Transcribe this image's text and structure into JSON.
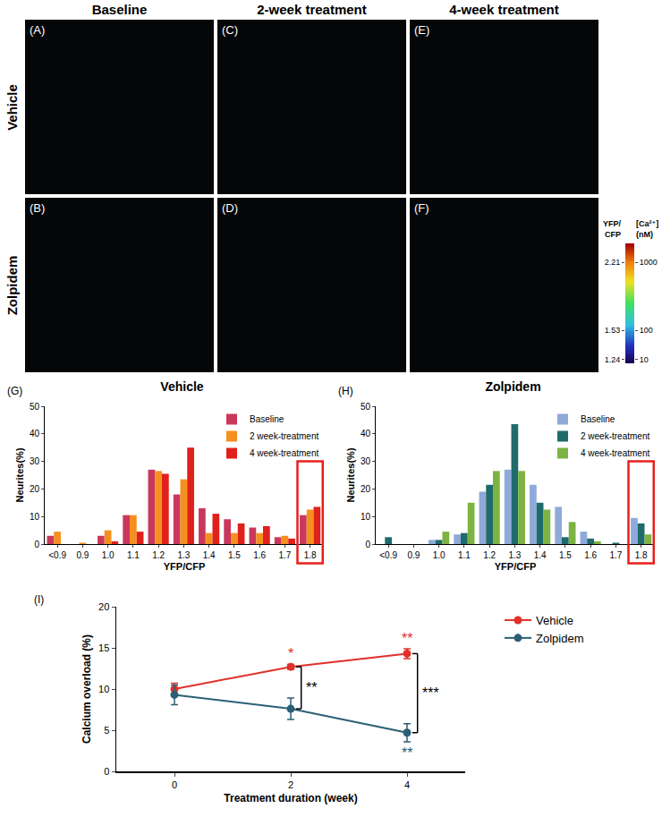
{
  "image_panels": {
    "columns": [
      "Baseline",
      "2-week treatment",
      "4-week treatment"
    ],
    "rows": [
      "Vehicle",
      "Zolpidem"
    ],
    "letters": [
      [
        "(A)",
        "(C)",
        "(E)"
      ],
      [
        "(B)",
        "(D)",
        "(F)"
      ]
    ]
  },
  "colorbar": {
    "title": "YFP/CFP",
    "conc_title": "[Ca²⁺] (nM)",
    "clim": [
      1.2,
      2.4
    ],
    "ticks": [
      1.24,
      1.53,
      2.21
    ],
    "conc_ticks": [
      10,
      100,
      1000
    ]
  },
  "chart_data": [
    {
      "type": "bar",
      "panel": "(G)",
      "title": "Vehicle",
      "x_label": "YFP/CFP",
      "y_label": "Neurites(%)",
      "categories": [
        "<0.9",
        "0.9",
        "1.0",
        "1.1",
        "1.2",
        "1.3",
        "1.4",
        "1.5",
        "1.6",
        "1.7",
        "1.8"
      ],
      "ylim": [
        0,
        50
      ],
      "yticks": [
        0,
        10,
        20,
        30,
        40,
        50
      ],
      "legend": "upper right",
      "series": [
        {
          "name": "Baseline",
          "color": "#c9385c",
          "values": [
            3,
            0,
            3,
            10.5,
            27,
            18,
            13,
            9,
            6,
            2.5,
            10.5
          ]
        },
        {
          "name": "2 week-treatment",
          "color": "#f5901e",
          "values": [
            4.5,
            0.5,
            5,
            10.5,
            26.5,
            23.5,
            4,
            4,
            4,
            3,
            12.5
          ]
        },
        {
          "name": "4 week-treatment",
          "color": "#e0201b",
          "values": [
            0,
            0,
            1,
            4.5,
            25.5,
            35,
            11,
            7.5,
            6.5,
            2,
            13.5
          ]
        }
      ]
    },
    {
      "type": "bar",
      "panel": "(H)",
      "title": "Zolpidem",
      "x_label": "YFP/CFP",
      "y_label": "Neurites(%)",
      "categories": [
        "<0.9",
        "0.9",
        "1.0",
        "1.1",
        "1.2",
        "1.3",
        "1.4",
        "1.5",
        "1.6",
        "1.7",
        "1.8"
      ],
      "ylim": [
        0,
        50
      ],
      "yticks": [
        0,
        10,
        20,
        30,
        40,
        50
      ],
      "legend": "upper right",
      "series": [
        {
          "name": "Baseline",
          "color": "#8fa9da",
          "values": [
            0,
            0,
            1.5,
            3.5,
            19,
            27,
            21.5,
            13.5,
            4.5,
            0,
            9.5
          ]
        },
        {
          "name": "2 week-treatment",
          "color": "#1f6b6b",
          "values": [
            2.5,
            0,
            1.5,
            4,
            21.5,
            43.5,
            15,
            2.5,
            2,
            0.5,
            7.5
          ]
        },
        {
          "name": "4 week-treatment",
          "color": "#7cb342",
          "values": [
            0,
            0,
            4.5,
            15,
            26.5,
            26.5,
            12.5,
            8,
            1,
            0,
            3.5
          ]
        }
      ]
    },
    {
      "type": "line",
      "panel": "(I)",
      "x_label": "Treatment duration (week)",
      "y_label": "Calcium overload (%)",
      "x": [
        0,
        2,
        4
      ],
      "xlim": [
        -1,
        5
      ],
      "xticks": [
        0,
        2,
        4
      ],
      "ylim": [
        0,
        20
      ],
      "yticks": [
        0,
        5,
        10,
        15,
        20
      ],
      "legend": "right",
      "series": [
        {
          "name": "Vehicle",
          "color": "#e0302a",
          "marker": "circle",
          "values": [
            10,
            12.7,
            14.3
          ],
          "errors": [
            0.7,
            0.3,
            0.6
          ]
        },
        {
          "name": "Zolpidem",
          "color": "#2b5f75",
          "marker": "circle",
          "values": [
            9.3,
            7.6,
            4.7
          ],
          "errors": [
            1.2,
            1.3,
            1.1
          ]
        }
      ],
      "annotations": [
        {
          "text": "*",
          "x": 2,
          "y": 13.1,
          "series": "Vehicle"
        },
        {
          "text": "**",
          "x": 4,
          "y": 15.0,
          "series": "Vehicle"
        },
        {
          "text": "**",
          "x": 4,
          "y": 3.4,
          "series": "Zolpidem"
        }
      ],
      "comparisons": [
        {
          "x": 2,
          "label": "**"
        },
        {
          "x": 4,
          "label": "***"
        }
      ]
    }
  ]
}
